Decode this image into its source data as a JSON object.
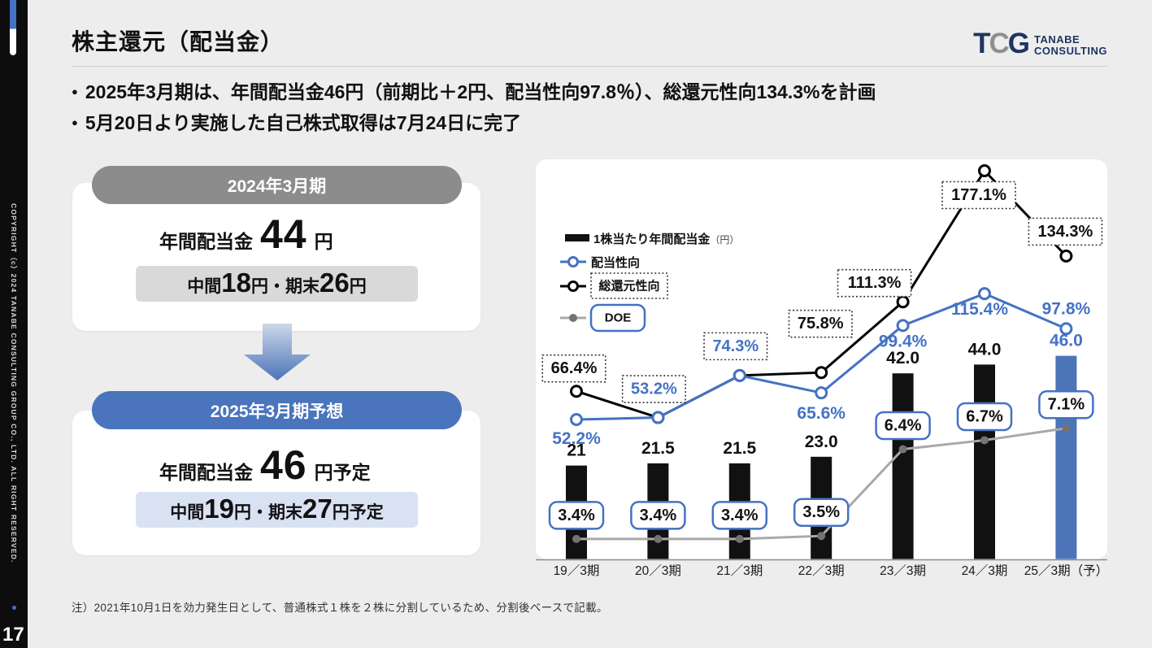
{
  "colors": {
    "accent_blue": "#4472C4",
    "header_gray": "#8C8C8C",
    "sidebar_black": "#0D0D0D"
  },
  "sidebar": {
    "copyright": "COPYRIGHT（c）2024 TANABE CONSULTING GROUP CO., LTD. ALL RIGHT RESERVED.",
    "page_number": "17"
  },
  "header": {
    "title": "株主還元（配当金）",
    "logo": {
      "letters": [
        "T",
        "C",
        "G"
      ],
      "lines": [
        "TANABE",
        "CONSULTING"
      ]
    }
  },
  "bullets": [
    "2025年3月期は、年間配当金46円（前期比＋2円、配当性向97.8％）、総還元性向134.3%を計画",
    "5月20日より実施した自己株式取得は7月24日に完了"
  ],
  "cards": {
    "fy2024": {
      "header": "2024年3月期",
      "label": "年間配当金",
      "amount": "44",
      "unit": "円",
      "breakdown": [
        "中間",
        "18",
        "円・期末",
        "26",
        "円"
      ]
    },
    "fy2025": {
      "header": "2025年3月期予想",
      "label": "年間配当金",
      "amount": "46",
      "unit": "円予定",
      "breakdown": [
        "中間",
        "19",
        "円・期末",
        "27",
        "円予定"
      ]
    }
  },
  "chart_data": {
    "type": "combo",
    "categories": [
      "19／3期",
      "20／3期",
      "21／3期",
      "22／3期",
      "23／3期",
      "24／3期",
      "25／3期（予）"
    ],
    "series": [
      {
        "name": "1株当たり年間配当金",
        "unit": "（円）",
        "type": "bar",
        "values": [
          21,
          21.5,
          21.5,
          23,
          42,
          44,
          46
        ],
        "labels": [
          "21",
          "21.5",
          "21.5",
          "23.0",
          "42.0",
          "44.0",
          "46.0"
        ]
      },
      {
        "name": "配当性向",
        "type": "line",
        "values": [
          52.2,
          53.2,
          74.3,
          65.6,
          99.4,
          115.4,
          97.8
        ],
        "labels": [
          "52.2%",
          "53.2%",
          "74.3%",
          "65.6%",
          "99.4%",
          "115.4%",
          "97.8%"
        ]
      },
      {
        "name": "総還元性向",
        "type": "line",
        "values": [
          66.4,
          53.2,
          74.3,
          75.8,
          111.3,
          177.1,
          134.3
        ],
        "labels": [
          "66.4%",
          null,
          null,
          "75.8%",
          "111.3%",
          "177.1%",
          "134.3%"
        ]
      },
      {
        "name": "DOE",
        "type": "line",
        "values": [
          3.4,
          3.4,
          3.4,
          3.5,
          6.4,
          6.7,
          7.1
        ],
        "labels": [
          "3.4%",
          "3.4%",
          "3.4%",
          "3.5%",
          "6.4%",
          "6.7%",
          "7.1%"
        ]
      }
    ],
    "colors": {
      "bar": "#111111",
      "bar_forecast": "#4C74B9",
      "payout": "#4472C4",
      "total_return": "#000000",
      "doe_line": "#A9A9A9",
      "doe_marker": "#737373"
    },
    "legend_position": "top-left",
    "gridlines": false,
    "value_axis_hidden": true
  },
  "footnote": "注）2021年10月1日を効力発生日として、普通株式１株を２株に分割しているため、分割後ベースで記載。"
}
